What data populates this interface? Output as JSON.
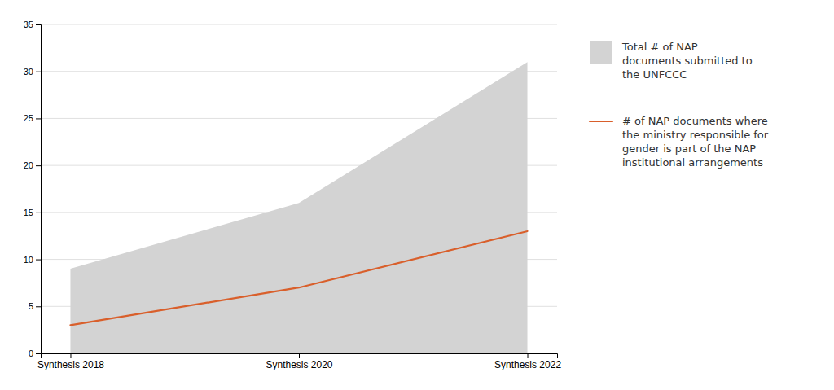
{
  "chart_data": {
    "type": "line",
    "categories": [
      "Synthesis 2018",
      "Synthesis 2020",
      "Synthesis 2022"
    ],
    "series": [
      {
        "name": "Total # of NAP\ndocuments submitted to\nthe UNFCCC",
        "type": "area",
        "color": "#d3d3d3",
        "values": [
          9,
          16,
          31
        ]
      },
      {
        "name": "# of NAP documents where\nthe ministry responsible for\ngender is part of the NAP\ninstitutional arrangements",
        "type": "line",
        "color": "#d95f2b",
        "values": [
          3,
          7,
          13
        ]
      }
    ],
    "ylim": [
      0,
      35
    ],
    "yticks": [
      0,
      5,
      10,
      15,
      20,
      25,
      30,
      35
    ],
    "grid": true,
    "legend": "right"
  }
}
